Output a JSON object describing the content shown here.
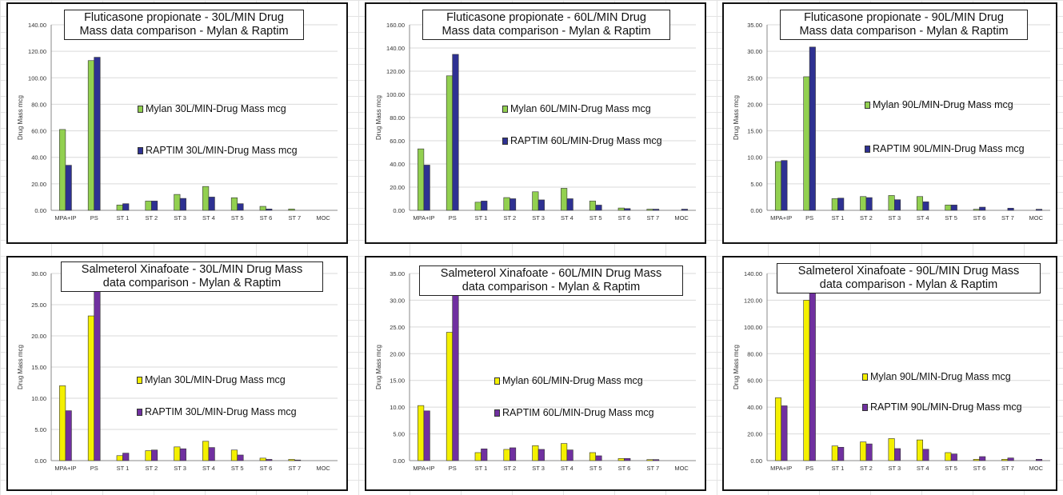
{
  "chart_data": [
    {
      "type": "bar",
      "title": "Fluticasone propionate - 30L/MIN Drug\nMass data comparison - Mylan & Raptim",
      "ylabel": "Drug Mass mcg",
      "ylim": [
        0,
        140
      ],
      "ytick_step": 20,
      "categories": [
        "MPA+IP",
        "PS",
        "ST 1",
        "ST 2",
        "ST 3",
        "ST 4",
        "ST 5",
        "ST 6",
        "ST 7",
        "MOC"
      ],
      "series": [
        {
          "name": "Mylan 30L/MIN-Drug Mass mcg",
          "color": "#92d050",
          "values": [
            61,
            113,
            4,
            7,
            12,
            18,
            9.5,
            3,
            1,
            0
          ]
        },
        {
          "name": "RAPTIM 30L/MIN-Drug Mass mcg",
          "color": "#2e3192",
          "values": [
            34,
            115.5,
            5,
            7,
            9,
            10,
            5,
            1,
            0,
            0
          ]
        }
      ]
    },
    {
      "type": "bar",
      "title": "Fluticasone propionate - 60L/MIN Drug\nMass data comparison - Mylan & Raptim",
      "ylabel": "Drug Mass mcg",
      "ylim": [
        0,
        160
      ],
      "ytick_step": 20,
      "categories": [
        "MPA+IP",
        "PS",
        "ST 1",
        "ST 2",
        "ST 3",
        "ST 4",
        "ST 5",
        "ST 6",
        "ST 7",
        "MOC"
      ],
      "series": [
        {
          "name": "Mylan 60L/MIN-Drug Mass mcg",
          "color": "#92d050",
          "values": [
            53,
            116,
            7,
            11,
            16,
            19,
            8,
            2,
            1,
            0
          ]
        },
        {
          "name": "RAPTIM 60L/MIN-Drug Mass mcg",
          "color": "#2e3192",
          "values": [
            39,
            134.5,
            8,
            10,
            9,
            10,
            4.5,
            1.5,
            1,
            1
          ]
        }
      ]
    },
    {
      "type": "bar",
      "title": "Fluticasone propionate - 90L/MIN Drug\nMass data comparison  - Mylan & Raptim",
      "ylabel": "Drug Mass mcg",
      "ylim": [
        0,
        35
      ],
      "ytick_step": 5,
      "categories": [
        "MPA+IP",
        "PS",
        "ST 1",
        "ST 2",
        "ST 3",
        "ST 4",
        "ST 5",
        "ST 6",
        "ST 7",
        "MOC"
      ],
      "series": [
        {
          "name": "Mylan 90L/MIN-Drug Mass mcg",
          "color": "#92d050",
          "values": [
            9.2,
            25.2,
            2.2,
            2.6,
            2.8,
            2.6,
            1,
            0.2,
            0,
            0
          ]
        },
        {
          "name": "RAPTIM 90L/MIN-Drug Mass mcg",
          "color": "#2e3192",
          "values": [
            9.4,
            30.8,
            2.3,
            2.4,
            2,
            1.6,
            1,
            0.6,
            0.4,
            0.2
          ]
        }
      ]
    },
    {
      "type": "bar",
      "title": "Salmeterol Xinafoate - 30L/MIN Drug Mass\ndata comparison - Mylan & Raptim",
      "ylabel": "Drug Mass mcg",
      "ylim": [
        0,
        30
      ],
      "ytick_step": 5,
      "categories": [
        "MPA+IP",
        "PS",
        "ST 1",
        "ST 2",
        "ST 3",
        "ST 4",
        "ST 5",
        "ST 6",
        "ST 7",
        "MOC"
      ],
      "series": [
        {
          "name": "Mylan 30L/MIN-Drug Mass mcg",
          "color": "#f4f000",
          "values": [
            12,
            23.2,
            0.8,
            1.6,
            2.2,
            3.1,
            1.7,
            0.4,
            0.2,
            0
          ]
        },
        {
          "name": "RAPTIM 30L/MIN-Drug Mass mcg",
          "color": "#7030a0",
          "values": [
            8,
            27.8,
            1.2,
            1.7,
            1.9,
            2.1,
            0.9,
            0.2,
            0.1,
            0
          ]
        }
      ]
    },
    {
      "type": "bar",
      "title": "Salmeterol Xinafoate - 60L/MIN Drug Mass\ndata comparison - Mylan & Raptim",
      "ylabel": "Drug Mass mcg",
      "ylim": [
        0,
        35
      ],
      "ytick_step": 5,
      "categories": [
        "MPA+IP",
        "PS",
        "ST 1",
        "ST 2",
        "ST 3",
        "ST 4",
        "ST 5",
        "ST 6",
        "ST 7",
        "MOC"
      ],
      "series": [
        {
          "name": "Mylan 60L/MIN-Drug Mass mcg",
          "color": "#f4f000",
          "values": [
            10.3,
            24,
            1.5,
            2.1,
            2.8,
            3.2,
            1.5,
            0.4,
            0.2,
            0
          ]
        },
        {
          "name": "RAPTIM 60L/MIN-Drug Mass mcg",
          "color": "#7030a0",
          "values": [
            9.3,
            32.5,
            2.2,
            2.4,
            2.1,
            2,
            0.9,
            0.4,
            0.2,
            0
          ]
        }
      ]
    },
    {
      "type": "bar",
      "title": "Salmeterol Xinafoate - 90L/MIN Drug Mass\ndata comparison - Mylan & Raptim",
      "ylabel": "Drug Mass mcg",
      "ylim": [
        0,
        140
      ],
      "ytick_step": 20,
      "categories": [
        "MPA+IP",
        "PS",
        "ST 1",
        "ST 2",
        "ST 3",
        "ST 4",
        "ST 5",
        "ST 6",
        "ST 7",
        "MOC"
      ],
      "series": [
        {
          "name": "Mylan 90L/MIN-Drug Mass mcg",
          "color": "#f4f000",
          "values": [
            47,
            120,
            11,
            14,
            16.5,
            15.5,
            6,
            1,
            1,
            0
          ]
        },
        {
          "name": "RAPTIM 90L/MIN-Drug Mass mcg",
          "color": "#7030a0",
          "values": [
            41,
            126,
            10,
            12.5,
            9,
            8.5,
            5,
            3,
            2,
            1
          ]
        }
      ]
    }
  ]
}
